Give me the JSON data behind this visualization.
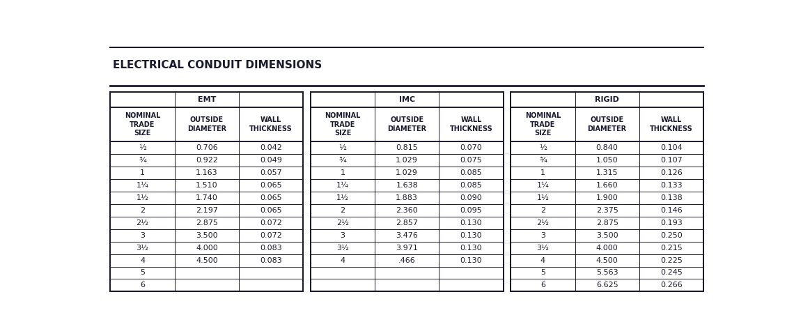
{
  "title": "ELECTRICAL CONDUIT DIMENSIONS",
  "sections": [
    {
      "header": "EMT",
      "col_headers": [
        "NOMINAL\nTRADE\nSIZE",
        "OUTSIDE\nDIAMETER",
        "WALL\nTHICKNESS"
      ],
      "rows": [
        [
          "½",
          "0.706",
          "0.042"
        ],
        [
          "¾",
          "0.922",
          "0.049"
        ],
        [
          "1",
          "1.163",
          "0.057"
        ],
        [
          "1¼",
          "1.510",
          "0.065"
        ],
        [
          "1½",
          "1.740",
          "0.065"
        ],
        [
          "2",
          "2.197",
          "0.065"
        ],
        [
          "2½",
          "2.875",
          "0.072"
        ],
        [
          "3",
          "3.500",
          "0.072"
        ],
        [
          "3½",
          "4.000",
          "0.083"
        ],
        [
          "4",
          "4.500",
          "0.083"
        ],
        [
          "5",
          "",
          ""
        ],
        [
          "6",
          "",
          ""
        ]
      ]
    },
    {
      "header": "IMC",
      "col_headers": [
        "NOMINAL\nTRADE\nSIZE",
        "OUTSIDE\nDIAMETER",
        "WALL\nTHICKNESS"
      ],
      "rows": [
        [
          "½",
          "0.815",
          "0.070"
        ],
        [
          "¾",
          "1.029",
          "0.075"
        ],
        [
          "1",
          "1.029",
          "0.085"
        ],
        [
          "1¼",
          "1.638",
          "0.085"
        ],
        [
          "1½",
          "1.883",
          "0.090"
        ],
        [
          "2",
          "2.360",
          "0.095"
        ],
        [
          "2½",
          "2.857",
          "0.130"
        ],
        [
          "3",
          "3.476",
          "0.130"
        ],
        [
          "3½",
          "3.971",
          "0.130"
        ],
        [
          "4",
          ".466",
          "0.130"
        ],
        [
          "",
          "",
          ""
        ],
        [
          "",
          "",
          ""
        ]
      ]
    },
    {
      "header": "RIGID",
      "col_headers": [
        "NOMINAL\nTRADE\nSIZE",
        "OUTSIDE\nDIAMETER",
        "WALL\nTHICKNESS"
      ],
      "rows": [
        [
          "½",
          "0.840",
          "0.104"
        ],
        [
          "¾",
          "1.050",
          "0.107"
        ],
        [
          "1",
          "1.315",
          "0.126"
        ],
        [
          "1¼",
          "1.660",
          "0.133"
        ],
        [
          "1½",
          "1.900",
          "0.138"
        ],
        [
          "2",
          "2.375",
          "0.146"
        ],
        [
          "2½",
          "2.875",
          "0.193"
        ],
        [
          "3",
          "3.500",
          "0.250"
        ],
        [
          "3½",
          "4.000",
          "0.215"
        ],
        [
          "4",
          "4.500",
          "0.225"
        ],
        [
          "5",
          "5.563",
          "0.245"
        ],
        [
          "6",
          "6.625",
          "0.266"
        ]
      ]
    }
  ],
  "bg_color": "#ffffff",
  "line_color": "#1a1a2e",
  "title_color": "#1a1a2e",
  "text_color": "#1a1a2e",
  "title_fontsize": 11,
  "header_fontsize": 8,
  "col_header_fontsize": 7,
  "data_fontsize": 8,
  "fig_width": 11.4,
  "fig_height": 4.75,
  "fig_dpi": 100
}
